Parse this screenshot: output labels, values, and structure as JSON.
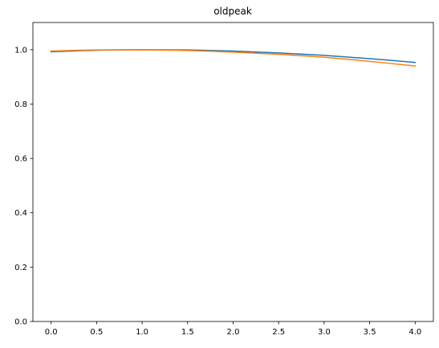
{
  "chart_data": {
    "type": "line",
    "title": "oldpeak",
    "xlabel": "",
    "ylabel": "",
    "xlim": [
      -0.2,
      4.2
    ],
    "ylim": [
      0.0,
      1.1
    ],
    "xticks": [
      0.0,
      0.5,
      1.0,
      1.5,
      2.0,
      2.5,
      3.0,
      3.5,
      4.0
    ],
    "xtick_labels": [
      "0.0",
      "0.5",
      "1.0",
      "1.5",
      "2.0",
      "2.5",
      "3.0",
      "3.5",
      "4.0"
    ],
    "yticks": [
      0.0,
      0.2,
      0.4,
      0.6,
      0.8,
      1.0
    ],
    "ytick_labels": [
      "0.0",
      "0.2",
      "0.4",
      "0.6",
      "0.8",
      "1.0"
    ],
    "grid": false,
    "x": [
      0.0,
      0.5,
      1.0,
      1.5,
      2.0,
      2.5,
      3.0,
      3.5,
      4.0
    ],
    "series": [
      {
        "color": "#1f77b4",
        "values": [
          0.992,
          0.998,
          1.0,
          0.999,
          0.995,
          0.988,
          0.979,
          0.967,
          0.953
        ]
      },
      {
        "color": "#ff7f0e",
        "values": [
          0.995,
          0.999,
          0.999,
          0.997,
          0.991,
          0.983,
          0.972,
          0.957,
          0.94
        ]
      }
    ]
  }
}
